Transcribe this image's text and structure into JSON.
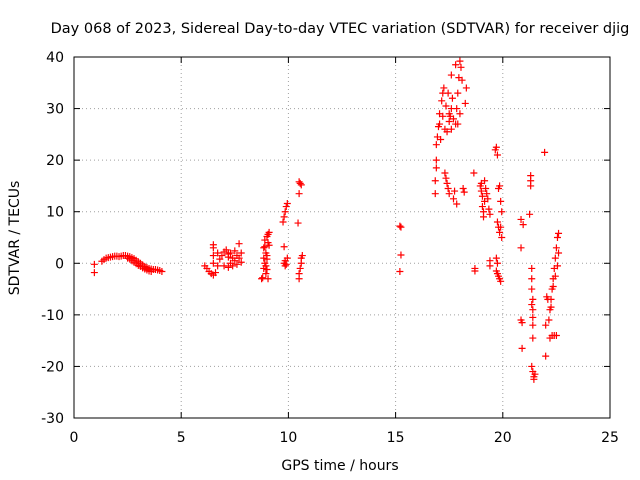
{
  "chart_data": {
    "type": "scatter",
    "title": "Day 068 of 2023, Sidereal Day-to-day VTEC variation (SDTVAR) for receiver djig",
    "xlabel": "GPS time / hours",
    "ylabel": "SDTVAR / TECUs",
    "xlim": [
      0,
      25
    ],
    "ylim": [
      -30,
      40
    ],
    "xticks": [
      0,
      5,
      10,
      15,
      20,
      25
    ],
    "xtick_labels": [
      "0",
      "5",
      "10",
      "15",
      "20",
      "25"
    ],
    "yticks": [
      -30,
      -20,
      -10,
      0,
      10,
      20,
      30,
      40
    ],
    "ytick_labels": [
      "-30",
      "-20",
      "-10",
      "0",
      "10",
      "20",
      "30",
      "40"
    ],
    "grid": true,
    "marker": "+",
    "color": "#ff0000",
    "series": [
      {
        "name": "SDTVAR",
        "points": [
          [
            0.95,
            -0.2
          ],
          [
            0.95,
            -1.8
          ],
          [
            1.3,
            0.4
          ],
          [
            1.4,
            0.7
          ],
          [
            1.5,
            1.0
          ],
          [
            1.6,
            1.1
          ],
          [
            1.7,
            1.2
          ],
          [
            1.8,
            1.3
          ],
          [
            1.9,
            1.4
          ],
          [
            2.0,
            1.4
          ],
          [
            2.1,
            1.3
          ],
          [
            2.2,
            1.4
          ],
          [
            2.3,
            1.5
          ],
          [
            2.4,
            1.5
          ],
          [
            2.5,
            1.4
          ],
          [
            2.6,
            1.3
          ],
          [
            2.7,
            1.1
          ],
          [
            2.8,
            0.9
          ],
          [
            2.9,
            0.6
          ],
          [
            3.0,
            0.3
          ],
          [
            3.1,
            0.0
          ],
          [
            3.2,
            -0.3
          ],
          [
            3.3,
            -0.6
          ],
          [
            3.4,
            -0.8
          ],
          [
            3.5,
            -1.0
          ],
          [
            3.6,
            -1.1
          ],
          [
            3.7,
            -1.2
          ],
          [
            3.8,
            -1.2
          ],
          [
            3.9,
            -1.3
          ],
          [
            4.0,
            -1.4
          ],
          [
            4.1,
            -1.6
          ],
          [
            2.5,
            1.0
          ],
          [
            2.6,
            0.8
          ],
          [
            2.7,
            0.5
          ],
          [
            2.8,
            0.2
          ],
          [
            2.9,
            -0.1
          ],
          [
            3.0,
            -0.4
          ],
          [
            3.1,
            -0.6
          ],
          [
            3.2,
            -0.9
          ],
          [
            3.3,
            -1.1
          ],
          [
            3.4,
            -1.3
          ],
          [
            3.5,
            -1.5
          ],
          [
            3.6,
            -1.6
          ],
          [
            6.1,
            -0.5
          ],
          [
            6.2,
            -1.0
          ],
          [
            6.3,
            -1.6
          ],
          [
            6.4,
            -2.0
          ],
          [
            6.5,
            -2.3
          ],
          [
            6.5,
            0.0
          ],
          [
            6.5,
            1.5
          ],
          [
            6.5,
            3.0
          ],
          [
            6.5,
            3.6
          ],
          [
            6.6,
            -1.8
          ],
          [
            6.7,
            -0.5
          ],
          [
            6.7,
            2.0
          ],
          [
            6.8,
            0.8
          ],
          [
            6.9,
            1.5
          ],
          [
            7.0,
            2.2
          ],
          [
            7.1,
            2.6
          ],
          [
            7.2,
            1.2
          ],
          [
            7.2,
            -0.8
          ],
          [
            7.3,
            0.0
          ],
          [
            7.3,
            2.0
          ],
          [
            7.4,
            1.0
          ],
          [
            7.4,
            -0.5
          ],
          [
            7.5,
            2.4
          ],
          [
            7.5,
            0.5
          ],
          [
            7.6,
            1.5
          ],
          [
            7.6,
            -0.2
          ],
          [
            7.7,
            3.8
          ],
          [
            7.7,
            1.0
          ],
          [
            7.8,
            0.2
          ],
          [
            7.8,
            2.0
          ],
          [
            7.2,
            1.8
          ],
          [
            7.0,
            -0.5
          ],
          [
            8.75,
            -3.0
          ],
          [
            8.8,
            -2.8
          ],
          [
            8.85,
            -1.0
          ],
          [
            8.85,
            1.0
          ],
          [
            8.85,
            3.0
          ],
          [
            8.9,
            4.5
          ],
          [
            8.9,
            0.0
          ],
          [
            8.95,
            2.0
          ],
          [
            8.95,
            -0.5
          ],
          [
            9.0,
            5.2
          ],
          [
            9.0,
            1.5
          ],
          [
            9.05,
            5.6
          ],
          [
            9.05,
            -3.0
          ],
          [
            9.1,
            6.0
          ],
          [
            9.1,
            3.5
          ],
          [
            8.95,
            -2.0
          ],
          [
            9.0,
            -1.2
          ],
          [
            8.9,
            3.2
          ],
          [
            9.0,
            0.8
          ],
          [
            9.05,
            4.0
          ],
          [
            9.75,
            8.0
          ],
          [
            9.8,
            9.0
          ],
          [
            9.85,
            10.0
          ],
          [
            9.9,
            11.0
          ],
          [
            9.95,
            11.6
          ],
          [
            9.8,
            3.2
          ],
          [
            9.8,
            0.0
          ],
          [
            9.85,
            -0.5
          ],
          [
            9.85,
            0.5
          ],
          [
            9.9,
            -0.2
          ],
          [
            9.95,
            1.0
          ],
          [
            10.45,
            7.8
          ],
          [
            10.5,
            13.5
          ],
          [
            10.5,
            15.8
          ],
          [
            10.55,
            15.5
          ],
          [
            10.6,
            15.2
          ],
          [
            10.5,
            -3.0
          ],
          [
            10.5,
            -2.0
          ],
          [
            10.55,
            -1.0
          ],
          [
            10.6,
            0.0
          ],
          [
            10.6,
            1.0
          ],
          [
            10.65,
            1.5
          ],
          [
            15.2,
            7.2
          ],
          [
            15.25,
            7.0
          ],
          [
            15.25,
            1.6
          ],
          [
            15.2,
            -1.6
          ],
          [
            16.85,
            13.5
          ],
          [
            16.85,
            16.0
          ],
          [
            16.9,
            18.5
          ],
          [
            16.9,
            20.0
          ],
          [
            16.9,
            23.0
          ],
          [
            16.95,
            24.5
          ],
          [
            17.0,
            26.5
          ],
          [
            17.05,
            29.0
          ],
          [
            17.05,
            27.0
          ],
          [
            17.1,
            24.0
          ],
          [
            17.15,
            31.5
          ],
          [
            17.2,
            33.0
          ],
          [
            17.25,
            34.0
          ],
          [
            17.3,
            17.5
          ],
          [
            17.35,
            16.5
          ],
          [
            17.4,
            15.5
          ],
          [
            17.45,
            14.5
          ],
          [
            17.5,
            13.5
          ],
          [
            17.45,
            33.0
          ],
          [
            17.5,
            29.0
          ],
          [
            17.5,
            27.5
          ],
          [
            17.55,
            28.5
          ],
          [
            17.6,
            30.0
          ],
          [
            17.6,
            36.5
          ],
          [
            17.65,
            32.0
          ],
          [
            17.7,
            28.0
          ],
          [
            17.7,
            12.5
          ],
          [
            17.75,
            14.0
          ],
          [
            17.8,
            27.0
          ],
          [
            17.8,
            38.5
          ],
          [
            17.85,
            30.0
          ],
          [
            17.85,
            11.5
          ],
          [
            17.9,
            33.0
          ],
          [
            17.95,
            36.0
          ],
          [
            18.0,
            29.0
          ],
          [
            18.0,
            39.2
          ],
          [
            18.05,
            38.0
          ],
          [
            18.1,
            35.5
          ],
          [
            18.15,
            14.5
          ],
          [
            18.2,
            13.8
          ],
          [
            18.25,
            31.0
          ],
          [
            18.3,
            34.0
          ],
          [
            17.3,
            26.0
          ],
          [
            17.4,
            25.5
          ],
          [
            17.6,
            26.0
          ],
          [
            17.9,
            27.0
          ],
          [
            17.2,
            28.5
          ],
          [
            17.35,
            30.5
          ],
          [
            18.65,
            17.5
          ],
          [
            18.7,
            -1.5
          ],
          [
            18.7,
            -1.0
          ],
          [
            18.95,
            15.0
          ],
          [
            19.0,
            14.0
          ],
          [
            19.05,
            13.0
          ],
          [
            19.05,
            11.0
          ],
          [
            19.1,
            10.0
          ],
          [
            19.1,
            9.0
          ],
          [
            19.15,
            12.0
          ],
          [
            19.2,
            14.5
          ],
          [
            19.25,
            13.5
          ],
          [
            19.3,
            12.5
          ],
          [
            19.35,
            10.5
          ],
          [
            19.4,
            9.5
          ],
          [
            19.0,
            15.5
          ],
          [
            19.15,
            16.0
          ],
          [
            19.4,
            0.5
          ],
          [
            19.4,
            -0.5
          ],
          [
            19.65,
            22.0
          ],
          [
            19.7,
            22.5
          ],
          [
            19.75,
            21.0
          ],
          [
            19.75,
            8.0
          ],
          [
            19.8,
            7.0
          ],
          [
            19.85,
            6.0
          ],
          [
            19.8,
            14.5
          ],
          [
            19.85,
            15.0
          ],
          [
            19.9,
            12.0
          ],
          [
            19.9,
            7.0
          ],
          [
            19.95,
            5.0
          ],
          [
            19.95,
            10.0
          ],
          [
            19.7,
            -1.5
          ],
          [
            19.75,
            -2.0
          ],
          [
            19.8,
            -2.5
          ],
          [
            19.85,
            -3.0
          ],
          [
            19.9,
            -3.5
          ],
          [
            19.75,
            0.0
          ],
          [
            19.7,
            1.0
          ],
          [
            20.85,
            8.5
          ],
          [
            20.85,
            3.0
          ],
          [
            20.85,
            -11.0
          ],
          [
            20.9,
            -11.5
          ],
          [
            20.9,
            -16.5
          ],
          [
            20.95,
            7.5
          ],
          [
            21.25,
            9.5
          ],
          [
            21.3,
            17.0
          ],
          [
            21.3,
            16.0
          ],
          [
            21.3,
            15.0
          ],
          [
            21.35,
            -1.0
          ],
          [
            21.35,
            -3.0
          ],
          [
            21.35,
            -5.0
          ],
          [
            21.4,
            -7.0
          ],
          [
            21.4,
            -9.0
          ],
          [
            21.4,
            -14.5
          ],
          [
            21.35,
            -20.0
          ],
          [
            21.4,
            -21.0
          ],
          [
            21.45,
            -22.0
          ],
          [
            21.45,
            -22.5
          ],
          [
            21.5,
            -21.5
          ],
          [
            21.4,
            -12.0
          ],
          [
            21.4,
            -10.5
          ],
          [
            21.35,
            -8.0
          ],
          [
            21.95,
            21.5
          ],
          [
            22.0,
            -12.0
          ],
          [
            22.0,
            -18.0
          ],
          [
            22.05,
            -6.5
          ],
          [
            22.1,
            -7.0
          ],
          [
            22.15,
            -11.0
          ],
          [
            22.2,
            -9.0
          ],
          [
            22.2,
            -14.5
          ],
          [
            22.25,
            -7.0
          ],
          [
            22.3,
            -5.0
          ],
          [
            22.3,
            -14.0
          ],
          [
            22.35,
            -3.0
          ],
          [
            22.4,
            -1.0
          ],
          [
            22.4,
            -14.0
          ],
          [
            22.45,
            1.0
          ],
          [
            22.5,
            3.0
          ],
          [
            22.5,
            -14.0
          ],
          [
            22.55,
            5.0
          ],
          [
            22.6,
            5.8
          ],
          [
            22.6,
            2.0
          ],
          [
            22.55,
            -0.5
          ],
          [
            22.45,
            -2.5
          ],
          [
            22.35,
            -4.5
          ],
          [
            22.25,
            -8.5
          ]
        ]
      }
    ]
  }
}
